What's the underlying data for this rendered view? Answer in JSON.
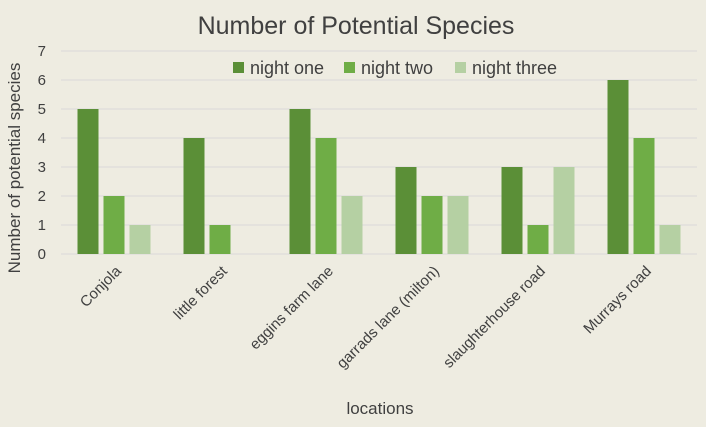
{
  "chart_data": {
    "type": "bar",
    "title": "Number of Potential Species",
    "xlabel": "locations",
    "ylabel": "Number of potential species",
    "categories": [
      "Conjola",
      "little forest",
      "eggins farm lane",
      "garrads lane (milton)",
      "slaughterhouse road",
      "Murrays road"
    ],
    "series": [
      {
        "name": "night one",
        "values": [
          5,
          4,
          5,
          3,
          3,
          6
        ],
        "color": "#5b8f37"
      },
      {
        "name": "night two",
        "values": [
          2,
          1,
          4,
          2,
          1,
          4
        ],
        "color": "#6fad46"
      },
      {
        "name": "night three",
        "values": [
          1,
          0,
          2,
          2,
          3,
          1
        ],
        "color": "#b5d0a3"
      }
    ],
    "ylim": [
      0,
      7
    ],
    "yticks": [
      0,
      1,
      2,
      3,
      4,
      5,
      6,
      7
    ],
    "grid": true,
    "legend": "top-center",
    "colors": {
      "background": "#eeece1",
      "grid": "#d9d9d9",
      "text": "#404040"
    }
  }
}
